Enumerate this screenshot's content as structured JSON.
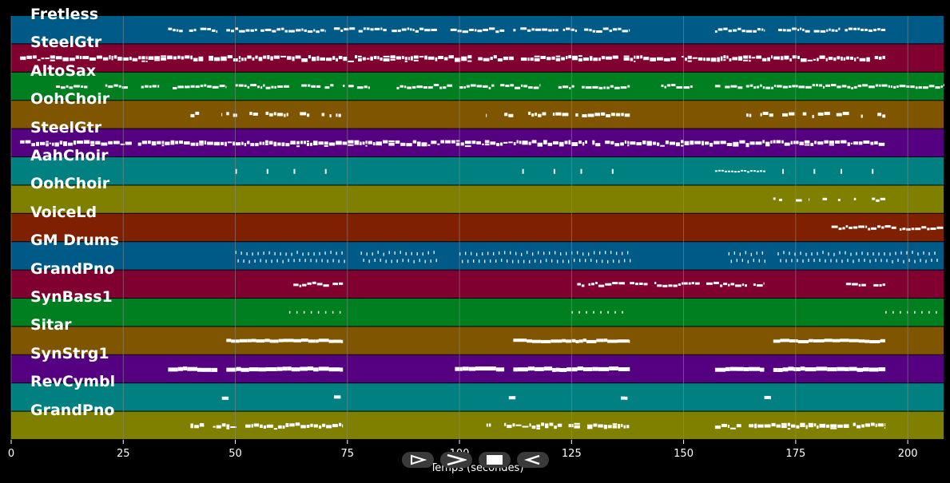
{
  "axis": {
    "xlabel": "Temps (secondes)",
    "xmin": 0,
    "xmax": 208,
    "ticks": [
      "0",
      "25",
      "50",
      "75",
      "100",
      "125",
      "150",
      "175",
      "200"
    ]
  },
  "colors": {
    "background": "#000000",
    "grid": "#8a8a8a",
    "note": "#ffffff"
  },
  "tracks": [
    {
      "name": "Fretless",
      "color": "#005a87",
      "notes": [
        [
          35,
          46
        ],
        [
          48,
          70
        ],
        [
          72,
          95
        ],
        [
          98,
          110
        ],
        [
          112,
          138
        ],
        [
          157,
          168
        ],
        [
          170,
          195
        ]
      ],
      "style": "dense-small"
    },
    {
      "name": "SteelGtr",
      "color": "#800030",
      "notes": [
        [
          2,
          195
        ]
      ],
      "style": "dense-big"
    },
    {
      "name": "AltoSax",
      "color": "#007f20",
      "notes": [
        [
          10,
          17
        ],
        [
          21,
          26
        ],
        [
          29,
          33
        ],
        [
          36,
          48
        ],
        [
          50,
          72
        ],
        [
          74,
          80
        ],
        [
          86,
          118
        ],
        [
          120,
          138
        ],
        [
          145,
          152
        ],
        [
          157,
          208
        ]
      ],
      "style": "dense-small"
    },
    {
      "name": "OohChoir",
      "color": "#7f5500",
      "notes": [
        [
          40,
          42
        ],
        [
          45,
          47
        ],
        [
          48,
          74
        ],
        [
          104,
          106
        ],
        [
          110,
          112
        ],
        [
          114,
          138
        ],
        [
          164,
          170
        ],
        [
          172,
          195
        ]
      ],
      "style": "sparse-big"
    },
    {
      "name": "SteelGtr",
      "color": "#550080",
      "notes": [
        [
          2,
          195
        ]
      ],
      "style": "dense-big"
    },
    {
      "name": "AahChoir",
      "color": "#008080",
      "notes": [
        [
          50,
          50.5
        ],
        [
          57,
          57.5
        ],
        [
          63,
          63.5
        ],
        [
          70,
          70.5
        ],
        [
          114,
          114.5
        ],
        [
          121,
          121.5
        ],
        [
          127,
          127.5
        ],
        [
          134,
          134.5
        ],
        [
          157,
          168
        ],
        [
          172,
          172.5
        ],
        [
          179,
          179.5
        ],
        [
          185,
          185.5
        ],
        [
          192,
          192.5
        ]
      ],
      "style": "vert"
    },
    {
      "name": "OohChoir",
      "color": "#808000",
      "notes": [
        [
          170,
          172
        ],
        [
          175,
          178
        ],
        [
          181,
          185
        ],
        [
          188,
          190
        ],
        [
          192,
          195
        ]
      ],
      "style": "sparse-small"
    },
    {
      "name": "VoiceLd",
      "color": "#7f2000",
      "notes": [
        [
          183,
          208
        ]
      ],
      "style": "dense-small"
    },
    {
      "name": "GM Drums",
      "color": "#005a87",
      "notes": [
        [
          50,
          74
        ],
        [
          78,
          95
        ],
        [
          100,
          138
        ],
        [
          160,
          168
        ],
        [
          171,
          207
        ]
      ],
      "style": "drums"
    },
    {
      "name": "GrandPno",
      "color": "#800030",
      "notes": [
        [
          62,
          74
        ],
        [
          125,
          137
        ],
        [
          138,
          168
        ],
        [
          184,
          195
        ]
      ],
      "style": "sparse-small"
    },
    {
      "name": "SynBass1",
      "color": "#007f20",
      "notes": [
        [
          62,
          74
        ],
        [
          125,
          137
        ],
        [
          195,
          207
        ]
      ],
      "style": "dots"
    },
    {
      "name": "Sitar",
      "color": "#7f5500",
      "notes": [
        [
          48,
          74
        ],
        [
          112,
          138
        ],
        [
          170,
          195
        ]
      ],
      "style": "solid"
    },
    {
      "name": "SynStrg1",
      "color": "#550080",
      "notes": [
        [
          35,
          46
        ],
        [
          48,
          74
        ],
        [
          99,
          110
        ],
        [
          112,
          138
        ],
        [
          157,
          168
        ],
        [
          170,
          195
        ]
      ],
      "style": "solid-big"
    },
    {
      "name": "RevCymbl",
      "color": "#008080",
      "notes": [
        [
          47,
          48.5
        ],
        [
          72,
          73.5
        ],
        [
          111,
          112.5
        ],
        [
          136,
          137.5
        ],
        [
          168,
          169.5
        ]
      ],
      "style": "solid"
    },
    {
      "name": "GrandPno",
      "color": "#808000",
      "notes": [
        [
          40,
          43
        ],
        [
          45,
          74
        ],
        [
          104,
          107
        ],
        [
          110,
          138
        ],
        [
          157,
          195
        ]
      ],
      "style": "dense-big"
    }
  ],
  "player": {
    "buttons": [
      {
        "name": "play-button",
        "icon": "play-icon"
      },
      {
        "name": "forward-button",
        "icon": "chevron-right-icon"
      },
      {
        "name": "stop-button",
        "icon": "stop-icon"
      },
      {
        "name": "back-button",
        "icon": "chevron-left-icon"
      }
    ]
  }
}
